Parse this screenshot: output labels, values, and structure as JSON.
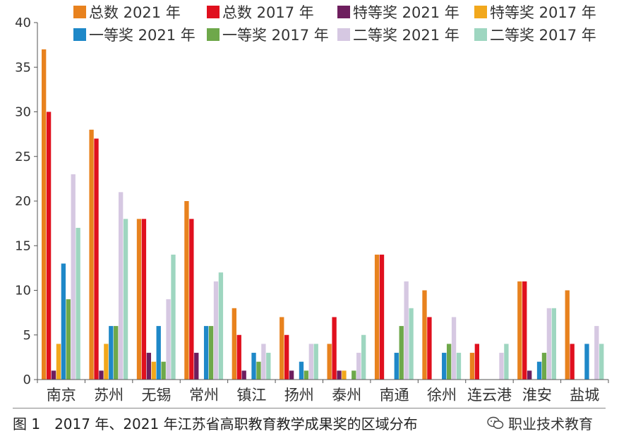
{
  "chart_data": {
    "type": "bar",
    "categories": [
      "南京",
      "苏州",
      "无锡",
      "常州",
      "镇江",
      "扬州",
      "泰州",
      "南通",
      "徐州",
      "连云港",
      "淮安",
      "盐城"
    ],
    "ylim": [
      0,
      40
    ],
    "yticks": [
      0,
      5,
      10,
      15,
      20,
      25,
      30,
      35,
      40
    ],
    "grid": false,
    "legend_position": "top",
    "series": [
      {
        "name": "总数 2021 年",
        "color": "#E8821E",
        "values": [
          37,
          28,
          18,
          20,
          8,
          7,
          4,
          14,
          10,
          3,
          11,
          10
        ]
      },
      {
        "name": "总数 2017 年",
        "color": "#E0101E",
        "values": [
          30,
          27,
          18,
          18,
          5,
          5,
          7,
          14,
          7,
          4,
          11,
          4
        ]
      },
      {
        "name": "特等奖 2021 年",
        "color": "#6E1E5E",
        "values": [
          1,
          1,
          3,
          3,
          1,
          1,
          1,
          0,
          0,
          0,
          1,
          0
        ]
      },
      {
        "name": "特等奖 2017 年",
        "color": "#F2A81C",
        "values": [
          4,
          4,
          2,
          0,
          0,
          0,
          1,
          0,
          0,
          0,
          0,
          0
        ]
      },
      {
        "name": "一等奖 2021 年",
        "color": "#1E88C8",
        "values": [
          13,
          6,
          6,
          6,
          3,
          2,
          0,
          3,
          3,
          0,
          2,
          4
        ]
      },
      {
        "name": "一等奖 2017 年",
        "color": "#6EA84A",
        "values": [
          9,
          6,
          2,
          6,
          2,
          1,
          1,
          6,
          4,
          0,
          3,
          0
        ]
      },
      {
        "name": "二等奖 2021 年",
        "color": "#D6C8E2",
        "values": [
          23,
          21,
          9,
          11,
          4,
          4,
          3,
          11,
          7,
          3,
          8,
          6
        ]
      },
      {
        "name": "二等奖 2017 年",
        "color": "#9ED6C0",
        "values": [
          17,
          18,
          14,
          12,
          3,
          4,
          5,
          8,
          3,
          4,
          8,
          4
        ]
      }
    ]
  },
  "caption": "图 1　2017 年、2021 年江苏省高职教育教学成果奖的区域分布",
  "watermark": "职业技术教育"
}
